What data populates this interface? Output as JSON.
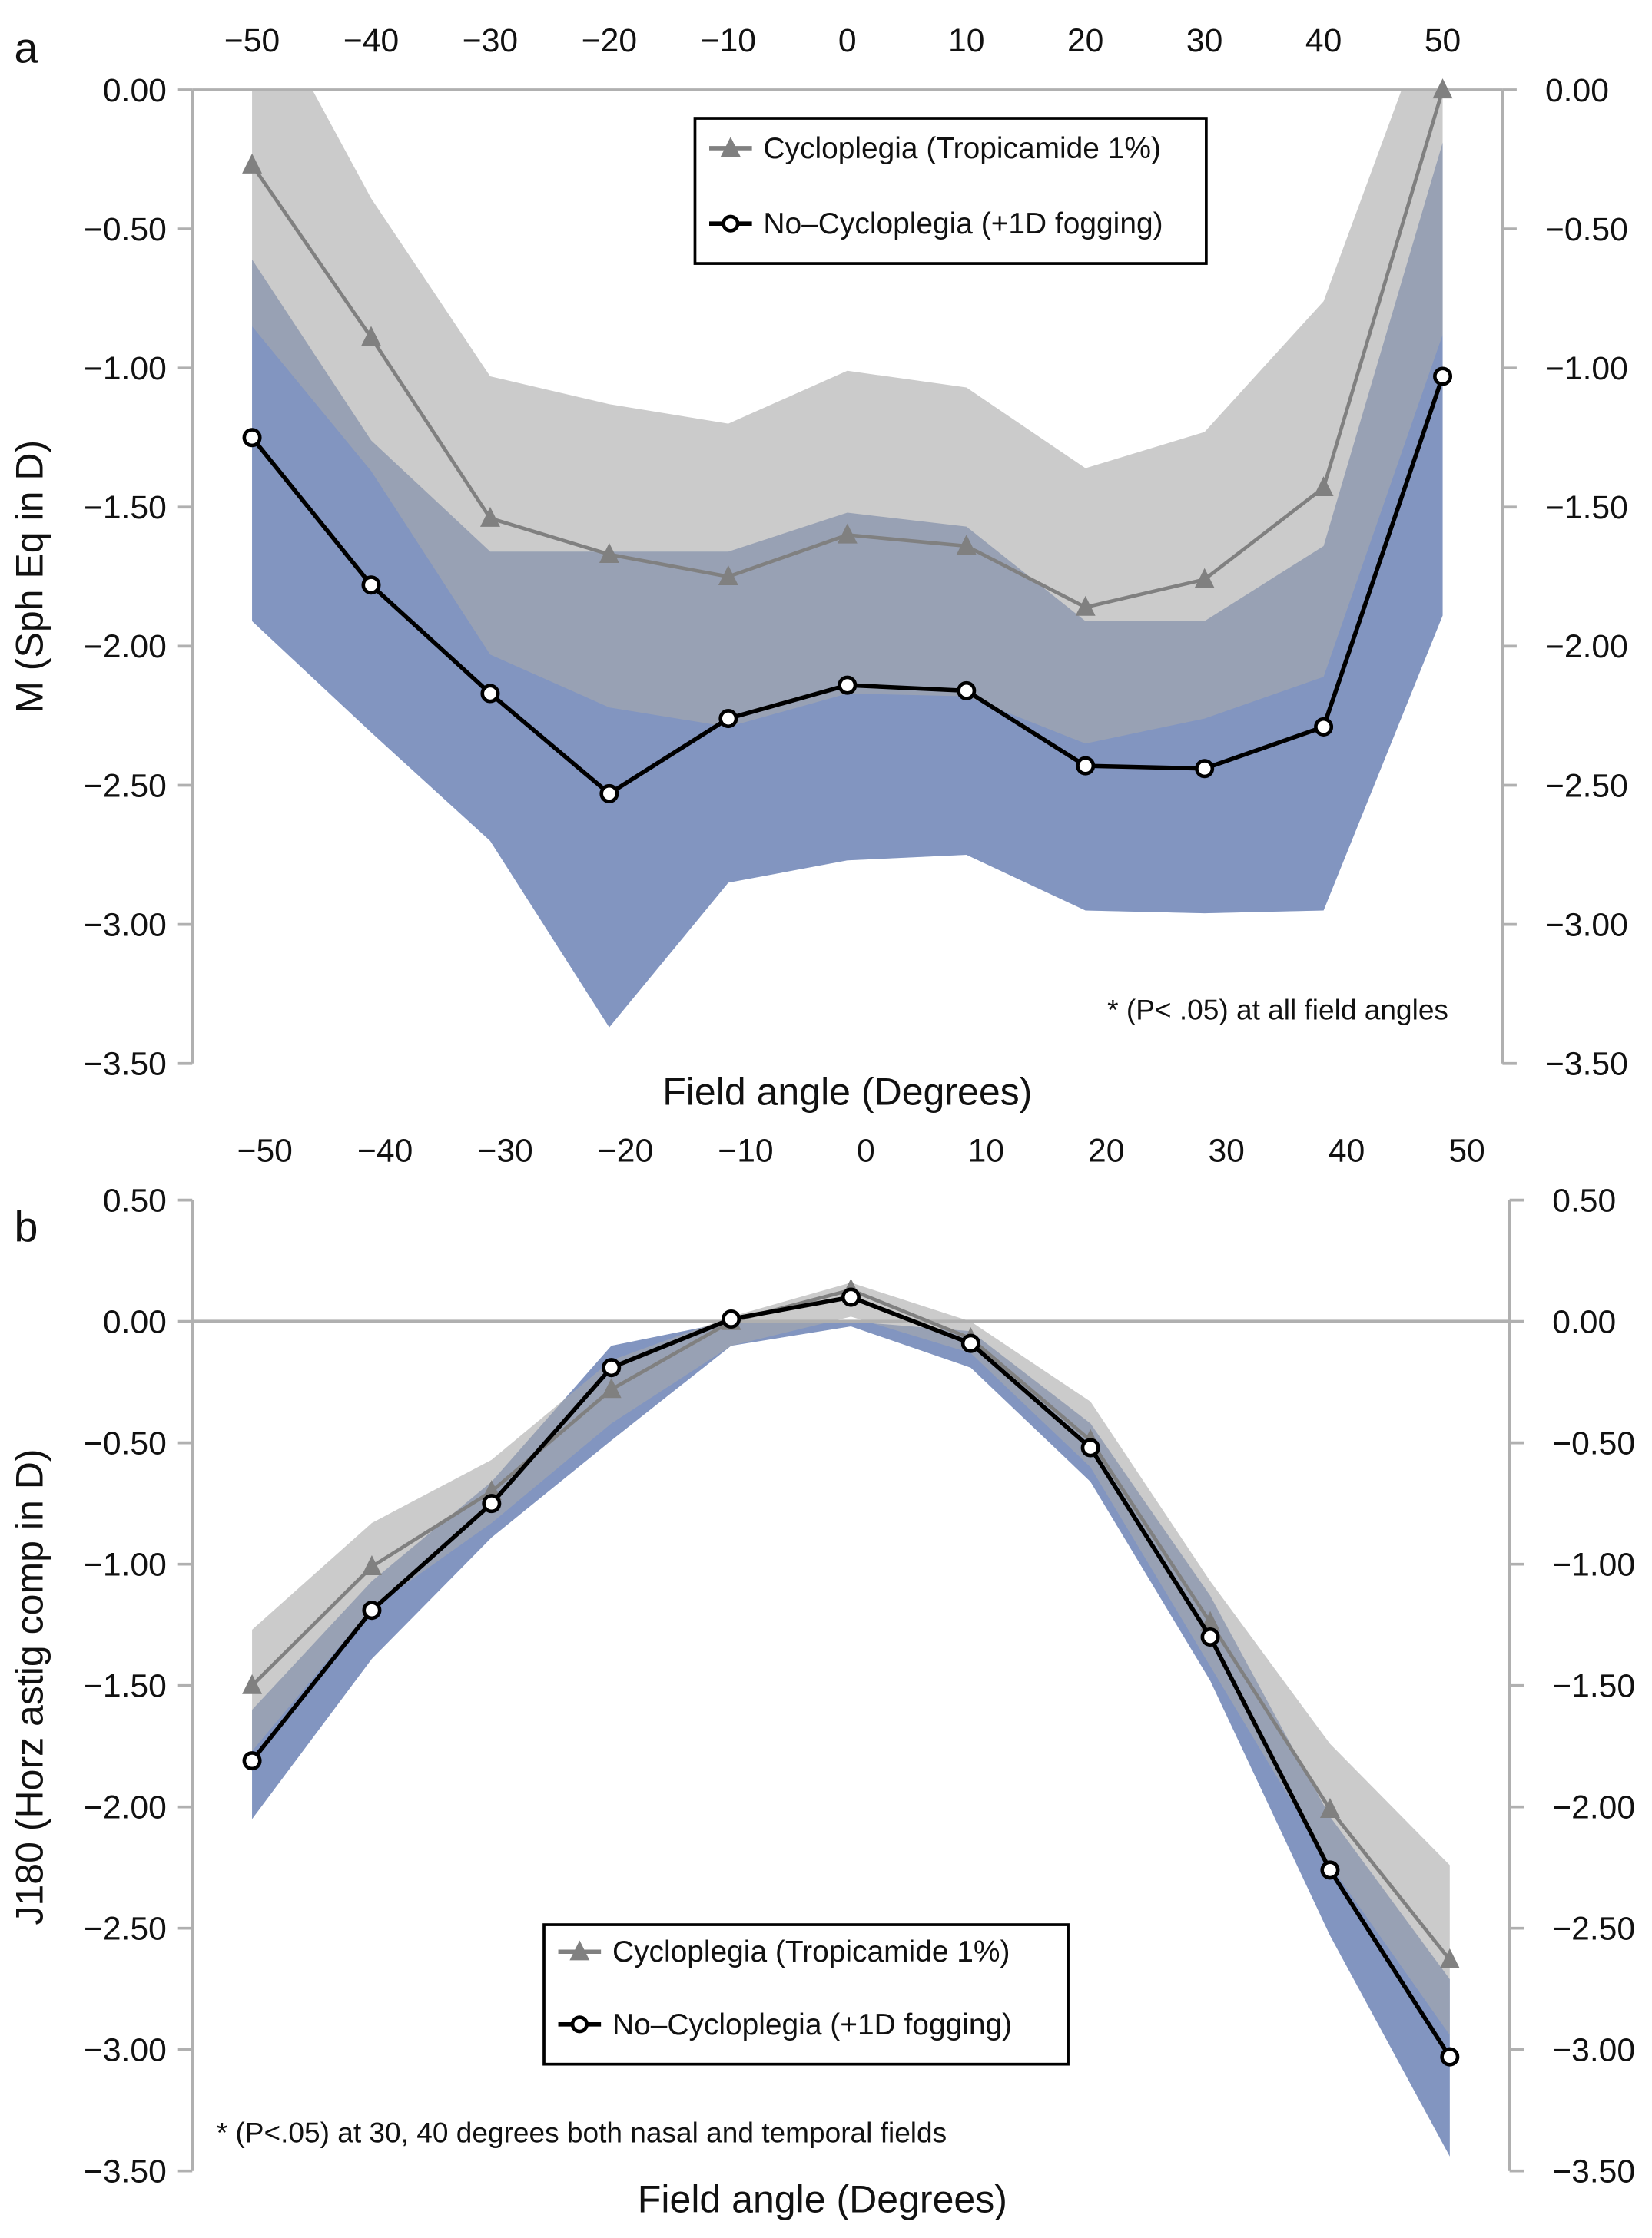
{
  "chart_data": [
    {
      "panel_label": "a",
      "type": "line",
      "xlabel": "Field angle (Degrees)",
      "ylabel": "M (Sph Eq in D)",
      "x": [
        -50,
        -40,
        -30,
        -20,
        -10,
        0,
        10,
        20,
        30,
        40,
        50
      ],
      "x_tick_labels": [
        "−50",
        "−40",
        "−30",
        "−20",
        "−10",
        "0",
        "10",
        "20",
        "30",
        "40",
        "50"
      ],
      "x_axis_position": "top",
      "ylim": [
        -3.5,
        0.0
      ],
      "y_ticks": [
        0.0,
        -0.5,
        -1.0,
        -1.5,
        -2.0,
        -2.5,
        -3.0,
        -3.5
      ],
      "y_tick_labels": [
        "0.00",
        "−0.50",
        "−1.00",
        "−1.50",
        "−2.00",
        "−2.50",
        "−3.00",
        "−3.50"
      ],
      "y_axes": "left and right",
      "legend_placement": "top-center",
      "annotation": "* (P< .05) at all field angles",
      "series": [
        {
          "name": "Cycloplegia (Tropicamide 1%)",
          "marker": "triangle",
          "color": "#808080",
          "band_color": "#cbcbcb",
          "values": [
            -0.27,
            -0.89,
            -1.54,
            -1.67,
            -1.75,
            -1.6,
            -1.64,
            -1.86,
            -1.76,
            -1.43,
            0.0
          ],
          "band_upper": [
            0.4,
            -0.39,
            -1.03,
            -1.13,
            -1.2,
            -1.01,
            -1.07,
            -1.36,
            -1.23,
            -0.76,
            0.4
          ],
          "band_lower": [
            -0.85,
            -1.37,
            -2.03,
            -2.22,
            -2.29,
            -2.17,
            -2.18,
            -2.35,
            -2.26,
            -2.11,
            -0.88
          ]
        },
        {
          "name": "No–Cycloplegia (+1D fogging)",
          "marker": "open-circle",
          "color": "#000000",
          "band_color": "#a0b3df",
          "values": [
            -1.25,
            -1.78,
            -2.17,
            -2.53,
            -2.26,
            -2.14,
            -2.16,
            -2.43,
            -2.44,
            -2.29,
            -1.03
          ],
          "band_upper": [
            -0.61,
            -1.26,
            -1.66,
            -1.66,
            -1.66,
            -1.52,
            -1.57,
            -1.91,
            -1.91,
            -1.64,
            -0.19
          ],
          "band_lower": [
            -1.91,
            -2.31,
            -2.7,
            -3.37,
            -2.85,
            -2.77,
            -2.75,
            -2.95,
            -2.96,
            -2.95,
            -1.89
          ]
        }
      ]
    },
    {
      "panel_label": "b",
      "type": "line",
      "xlabel": "Field angle (Degrees)",
      "ylabel": "J180 (Horz astig comp in D)",
      "x": [
        -50,
        -40,
        -30,
        -20,
        -10,
        0,
        10,
        20,
        30,
        40,
        50
      ],
      "x_tick_labels": [
        "−50",
        "−40",
        "−30",
        "−20",
        "−10",
        "0",
        "10",
        "20",
        "30",
        "40",
        "50"
      ],
      "x_axis_position": "top",
      "ylim": [
        -3.5,
        0.5
      ],
      "y_ticks": [
        0.5,
        0.0,
        -0.5,
        -1.0,
        -1.5,
        -2.0,
        -2.5,
        -3.0,
        -3.5
      ],
      "y_tick_labels": [
        "0.50",
        "0.00",
        "−0.50",
        "−1.00",
        "−1.50",
        "−2.00",
        "−2.50",
        "−3.00",
        "−3.50"
      ],
      "y_axes": "left and right",
      "legend_placement": "bottom-center",
      "annotation": "* (P<.05) at 30, 40 degrees both nasal and temporal fields",
      "series": [
        {
          "name": "Cycloplegia (Tropicamide 1%)",
          "marker": "triangle",
          "color": "#808080",
          "band_color": "#cbcbcb",
          "values": [
            -1.5,
            -1.01,
            -0.7,
            -0.28,
            0.0,
            0.13,
            -0.07,
            -0.49,
            -1.24,
            -2.01,
            -2.63
          ],
          "band_upper": [
            -1.27,
            -0.83,
            -0.57,
            -0.16,
            0.02,
            0.16,
            0.0,
            -0.33,
            -1.07,
            -1.74,
            -2.24
          ],
          "band_lower": [
            -1.77,
            -1.18,
            -0.83,
            -0.42,
            -0.1,
            0.02,
            -0.13,
            -0.6,
            -1.42,
            -2.24,
            -2.94
          ]
        },
        {
          "name": "No–Cycloplegia (+1D fogging)",
          "marker": "open-circle",
          "color": "#000000",
          "band_color": "#a0b3df",
          "values": [
            -1.81,
            -1.19,
            -0.75,
            -0.19,
            0.01,
            0.1,
            -0.09,
            -0.52,
            -1.3,
            -2.26,
            -3.03
          ],
          "band_upper": [
            -1.6,
            -1.07,
            -0.66,
            -0.1,
            0.0,
            0.0,
            -0.04,
            -0.42,
            -1.13,
            -2.04,
            -2.71
          ],
          "band_lower": [
            -2.05,
            -1.39,
            -0.89,
            -0.49,
            -0.1,
            -0.02,
            -0.19,
            -0.66,
            -1.48,
            -2.53,
            -3.44
          ]
        }
      ]
    }
  ]
}
